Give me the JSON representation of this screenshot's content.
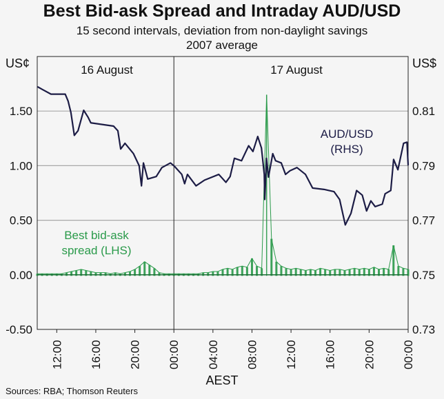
{
  "chart_data": {
    "type": "line",
    "title": "Best Bid-ask Spread and Intraday AUD/USD",
    "subtitle": [
      "15 second intervals, deviation from non-daylight savings",
      "2007 average"
    ],
    "xlabel": "AEST",
    "ylabel_left": "US¢",
    "ylabel_right": "US$",
    "ylim_left": [
      -0.5,
      2.0
    ],
    "ylim_right": [
      0.73,
      0.83
    ],
    "yticks_left": [
      "1.50",
      "1.00",
      "0.50",
      "0.00",
      "-0.50"
    ],
    "yticks_left_values": [
      1.5,
      1.0,
      0.5,
      0.0,
      -0.5
    ],
    "yticks_right": [
      "0.81",
      "0.79",
      "0.77",
      "0.75",
      "0.73"
    ],
    "yticks_right_values": [
      0.81,
      0.79,
      0.77,
      0.75,
      0.73
    ],
    "xlim_hours": [
      10,
      48
    ],
    "xticks": [
      "12:00",
      "16:00",
      "20:00",
      "00:00",
      "04:00",
      "08:00",
      "12:00",
      "16:00",
      "20:00",
      "00:00"
    ],
    "xticks_hours": [
      12,
      16,
      20,
      24,
      28,
      32,
      36,
      40,
      44,
      48
    ],
    "day_labels": [
      "16 August",
      "17 August"
    ],
    "day_divider_hour": 24,
    "grid": true,
    "annotations": {
      "audusd": [
        "AUD/USD",
        "(RHS)"
      ],
      "spread": [
        "Best bid-ask",
        "spread (LHS)"
      ]
    },
    "source": "Sources: RBA; Thomson Reuters",
    "colors": {
      "audusd": "#1c1c45",
      "spread": "#2a9a4a",
      "grid": "#a8a8a8"
    },
    "series": [
      {
        "name": "AUD/USD (RHS)",
        "axis": "right",
        "x": [
          10.04,
          10.54,
          11.41,
          12.87,
          13.16,
          13.45,
          13.8,
          14.18,
          14.76,
          15.2,
          15.49,
          17.82,
          18.26,
          18.55,
          18.99,
          19.86,
          20.44,
          20.68,
          20.88,
          21.32,
          22.19,
          22.77,
          23.65,
          24.08,
          24.81,
          25.1,
          25.39,
          26.27,
          27.14,
          28.6,
          29.33,
          29.76,
          30.2,
          30.93,
          31.66,
          32.1,
          32.59,
          32.97,
          33.26,
          33.31,
          33.49,
          33.69,
          34.13,
          34.42,
          35.0,
          35.44,
          35.88,
          36.61,
          37.48,
          38.21,
          39.38,
          40.4,
          40.98,
          41.56,
          42.14,
          42.72,
          43.3,
          43.74,
          44.18,
          44.62,
          45.35,
          45.64,
          46.22,
          46.51,
          46.95,
          47.53,
          47.88,
          48.0
        ],
        "values": [
          0.8189,
          0.8179,
          0.8162,
          0.8162,
          0.8137,
          0.8095,
          0.8011,
          0.8028,
          0.8103,
          0.8078,
          0.8057,
          0.8045,
          0.8028,
          0.7961,
          0.7982,
          0.7944,
          0.79,
          0.7826,
          0.791,
          0.7851,
          0.786,
          0.7893,
          0.791,
          0.7897,
          0.7868,
          0.7834,
          0.7868,
          0.7826,
          0.7847,
          0.7868,
          0.7839,
          0.786,
          0.7927,
          0.7918,
          0.7973,
          0.7952,
          0.8007,
          0.7965,
          0.7868,
          0.7776,
          0.7927,
          0.7858,
          0.7944,
          0.7918,
          0.791,
          0.7868,
          0.7881,
          0.7893,
          0.7868,
          0.7818,
          0.7813,
          0.7805,
          0.7776,
          0.7683,
          0.7725,
          0.7809,
          0.7792,
          0.7734,
          0.7771,
          0.775,
          0.7759,
          0.7797,
          0.7809,
          0.7923,
          0.7885,
          0.7982,
          0.7986,
          0.7902
        ]
      },
      {
        "name": "Best bid-ask spread (LHS)",
        "axis": "left",
        "x_start": 10,
        "x_step": 0.5,
        "values": [
          0.01,
          0.01,
          0.01,
          0.01,
          0.01,
          0.01,
          0.02,
          0.03,
          0.04,
          0.05,
          0.04,
          0.03,
          0.02,
          0.02,
          0.02,
          0.01,
          0.02,
          0.01,
          0.02,
          0.03,
          0.05,
          0.08,
          0.12,
          0.09,
          0.06,
          0.02,
          0.01,
          0.01,
          0.01,
          0.01,
          0.01,
          0.01,
          0.01,
          0.01,
          0.02,
          0.02,
          0.03,
          0.03,
          0.05,
          0.06,
          0.05,
          0.07,
          0.08,
          0.07,
          0.15,
          0.08,
          0.06,
          1.65,
          0.33,
          0.12,
          0.08,
          0.06,
          0.05,
          0.06,
          0.05,
          0.04,
          0.05,
          0.04,
          0.06,
          0.05,
          0.04,
          0.05,
          0.05,
          0.04,
          0.05,
          0.06,
          0.05,
          0.06,
          0.05,
          0.07,
          0.05,
          0.06,
          0.05,
          0.27,
          0.08,
          0.06,
          0.05
        ]
      }
    ]
  }
}
